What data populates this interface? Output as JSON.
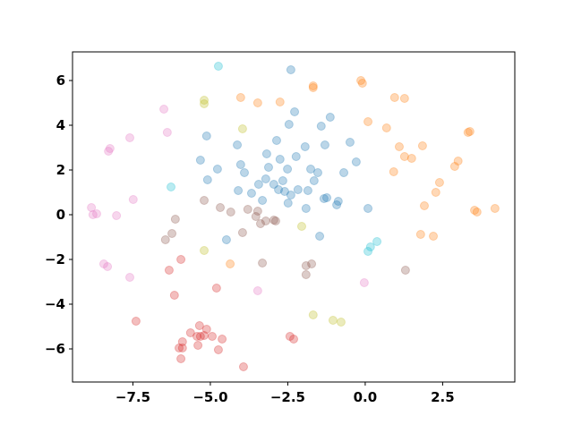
{
  "chart_data": {
    "type": "scatter",
    "alpha": 0.3,
    "xlim": [
      -9.45,
      4.83
    ],
    "ylim": [
      -7.48,
      7.28
    ],
    "xticks": [
      {
        "value": -7.5,
        "label": "−7.5"
      },
      {
        "value": -5.0,
        "label": "−5.0"
      },
      {
        "value": -2.5,
        "label": "−2.5"
      },
      {
        "value": 0.0,
        "label": "0.0"
      },
      2.5
    ],
    "yticks": [
      {
        "value": -6,
        "label": "−6"
      },
      {
        "value": -4,
        "label": "−4"
      },
      {
        "value": -2,
        "label": "−2"
      },
      0,
      2,
      4,
      6
    ],
    "series": [
      {
        "color": "#1f77b4",
        "x": [
          -2.4,
          -2.28,
          -1.13,
          -2.46,
          -1.42,
          -5.12,
          -2.86,
          -0.49,
          -4.13,
          -1.3,
          -1.94,
          -3.18,
          -2.23,
          -2.75,
          -5.32,
          -0.29,
          -4.02,
          -4.77,
          -3.12,
          -2.51,
          -1.76,
          -3.9,
          -1.53,
          -0.69,
          -3.21,
          -5.09,
          -2.66,
          -1.65,
          -3.44,
          -2.95,
          -2.8,
          -2.6,
          -2.17,
          -1.85,
          -4.1,
          -3.67,
          -2.4,
          -1.33,
          -1.24,
          -0.87,
          -0.92,
          -2.49,
          -3.32,
          -1.91,
          0.09,
          -4.48,
          -1.47
        ],
        "y": [
          6.48,
          4.6,
          4.36,
          4.04,
          3.96,
          3.52,
          3.32,
          3.24,
          3.12,
          3.12,
          3.04,
          2.72,
          2.6,
          2.48,
          2.44,
          2.36,
          2.24,
          2.04,
          2.12,
          2.04,
          2.04,
          1.88,
          1.88,
          1.88,
          1.6,
          1.56,
          1.52,
          1.52,
          1.36,
          1.36,
          1.12,
          1.04,
          1.12,
          1.08,
          1.08,
          0.96,
          0.88,
          0.72,
          0.76,
          0.6,
          0.44,
          0.52,
          0.64,
          0.28,
          0.28,
          -1.12,
          -0.96
        ]
      },
      {
        "color": "#ff7f0e",
        "x": [
          -0.14,
          -0.09,
          -1.68,
          -1.68,
          -4.02,
          0.95,
          1.27,
          -2.75,
          -3.47,
          0.09,
          0.69,
          3.38,
          3.32,
          1.1,
          1.85,
          1.27,
          1.5,
          3.0,
          2.89,
          0.92,
          2.4,
          2.28,
          1.91,
          3.53,
          3.61,
          4.19,
          1.79,
          2.2,
          -4.36
        ],
        "y": [
          6.0,
          5.88,
          5.76,
          5.68,
          5.24,
          5.24,
          5.2,
          5.04,
          5.0,
          4.16,
          3.88,
          3.72,
          3.68,
          3.04,
          3.08,
          2.6,
          2.52,
          2.4,
          2.16,
          1.92,
          1.44,
          1.0,
          0.4,
          0.2,
          0.12,
          0.28,
          -0.88,
          -0.96,
          -2.2
        ]
      },
      {
        "color": "#bcbd22",
        "x": [
          -5.2,
          -5.2,
          -3.96,
          -2.05,
          -5.2,
          -1.68,
          -1.04,
          -0.78
        ],
        "y": [
          5.12,
          4.96,
          3.84,
          -0.52,
          -1.6,
          -4.48,
          -4.72,
          -4.8
        ]
      },
      {
        "color": "#d62728",
        "x": [
          -5.95,
          -6.33,
          -6.16,
          -4.8,
          -7.4,
          -5.35,
          -5.64,
          -5.43,
          -5.2,
          -5.12,
          -4.94,
          -5.32,
          -4.62,
          -5.9,
          -5.4,
          -6.01,
          -5.9,
          -4.74,
          -5.95,
          -3.93,
          -2.43,
          -2.31
        ],
        "y": [
          -2.0,
          -2.48,
          -3.6,
          -3.28,
          -4.76,
          -4.96,
          -5.28,
          -5.44,
          -5.4,
          -5.12,
          -5.44,
          -5.44,
          -5.56,
          -5.68,
          -5.84,
          -5.96,
          -5.96,
          -6.04,
          -6.44,
          -6.8,
          -5.44,
          -5.56
        ]
      },
      {
        "color": "#8c564b",
        "x": [
          -5.2,
          -4.68,
          -4.34,
          -3.79,
          -3.47,
          -3.53,
          -3.21,
          -2.95,
          -2.89,
          -3.38,
          -6.13,
          -6.24,
          -6.45,
          -3.96,
          -3.32,
          -1.73,
          -1.91,
          -1.91,
          1.3
        ],
        "y": [
          0.64,
          0.32,
          0.12,
          0.24,
          0.16,
          -0.08,
          -0.28,
          -0.24,
          -0.28,
          -0.4,
          -0.2,
          -0.84,
          -1.12,
          -0.8,
          -2.16,
          -2.2,
          -2.28,
          -2.68,
          -2.48
        ]
      },
      {
        "color": "#e377c2",
        "x": [
          -6.5,
          -6.39,
          -7.6,
          -8.24,
          -8.29,
          -7.49,
          -8.84,
          -8.67,
          -8.79,
          -8.03,
          -8.44,
          -8.32,
          -7.6,
          -3.47,
          -0.03
        ],
        "y": [
          4.72,
          3.68,
          3.44,
          2.96,
          2.84,
          0.68,
          0.32,
          0.04,
          0.0,
          -0.04,
          -2.2,
          -2.32,
          -2.8,
          -3.4,
          -3.04
        ]
      },
      {
        "color": "#17becf",
        "x": [
          -4.74,
          -6.27,
          0.38,
          0.17,
          0.09
        ],
        "y": [
          6.64,
          1.24,
          -1.2,
          -1.44,
          -1.64
        ]
      }
    ]
  }
}
